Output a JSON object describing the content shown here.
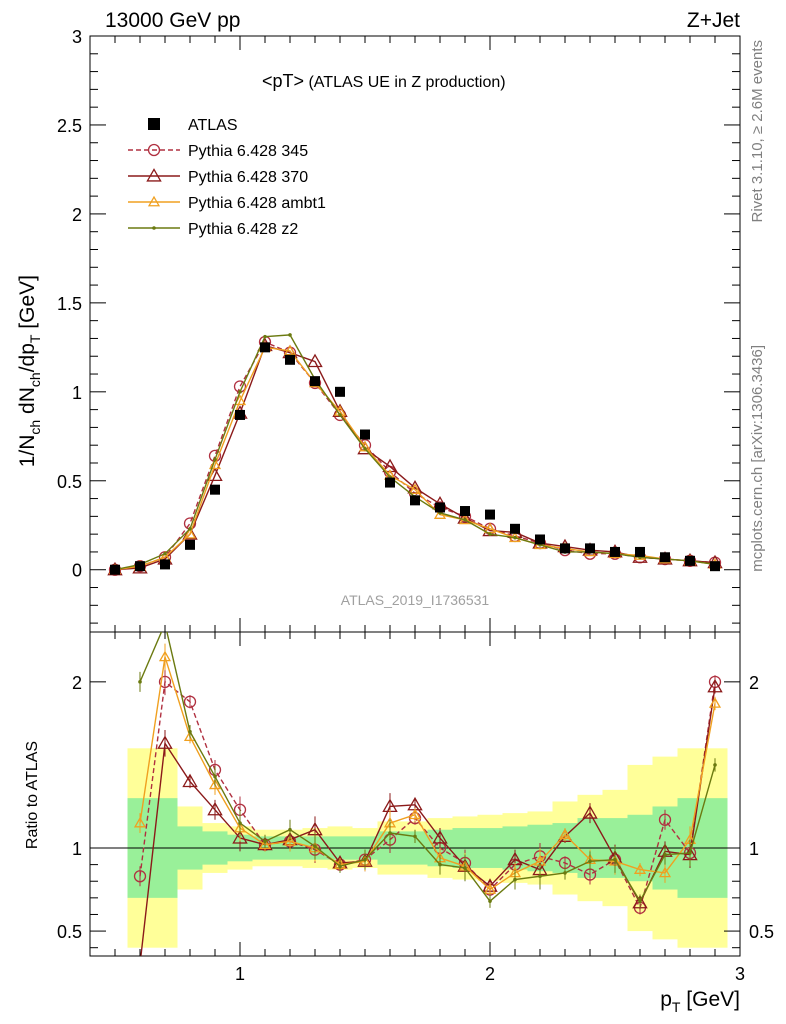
{
  "header": {
    "left_label": "13000 GeV pp",
    "right_label": "Z+Jet"
  },
  "side_labels": {
    "rivet": "Rivet 3.1.10, ≥ 2.6M events",
    "source": "mcplots.cern.ch [arXiv:1306.3436]"
  },
  "watermark": "ATLAS_2019_I1736531",
  "title": {
    "main": "<pT>",
    "suffix": " (ATLAS UE in Z production)"
  },
  "axes": {
    "ylabel_main": "1/N",
    "ylabel_sub1": "ch",
    "ylabel_mid": " dN",
    "ylabel_sub2": "ch",
    "ylabel_mid2": "/dp",
    "ylabel_sub3": "T",
    "ylabel_end": " [GeV]",
    "ylabel_ratio": "Ratio to ATLAS",
    "xlabel_main": "p",
    "xlabel_sub": "T",
    "xlabel_end": " [GeV]"
  },
  "chart_data": {
    "type": "line",
    "xlim": [
      0.4,
      3.0
    ],
    "ylim": [
      -0.35,
      3.0
    ],
    "ratio_ylim": [
      0.35,
      2.3
    ],
    "x_ticks": [
      "1",
      "2",
      "3"
    ],
    "y_ticks": [
      "0",
      "0.5",
      "1",
      "1.5",
      "2",
      "2.5",
      "3"
    ],
    "ratio_ticks": [
      "0.5",
      "1",
      "2"
    ],
    "x": [
      0.5,
      0.6,
      0.7,
      0.8,
      0.9,
      1.0,
      1.1,
      1.2,
      1.3,
      1.4,
      1.5,
      1.6,
      1.7,
      1.8,
      1.9,
      2.0,
      2.1,
      2.2,
      2.3,
      2.4,
      2.5,
      2.6,
      2.7,
      2.8,
      2.9
    ],
    "data": {
      "name": "ATLAS",
      "values": [
        0.0,
        0.02,
        0.03,
        0.14,
        0.45,
        0.87,
        1.25,
        1.18,
        1.06,
        1.0,
        0.76,
        0.49,
        0.39,
        0.35,
        0.33,
        0.31,
        0.23,
        0.17,
        0.12,
        0.12,
        0.1,
        0.1,
        0.07,
        0.05,
        0.02
      ]
    },
    "series": [
      {
        "name": "Pythia 6.428 345",
        "color": "#b03040",
        "dashed": true,
        "marker": "circle",
        "values": [
          0.0,
          0.02,
          0.07,
          0.26,
          0.64,
          1.03,
          1.28,
          1.22,
          1.05,
          0.87,
          0.7,
          0.55,
          0.43,
          0.35,
          0.3,
          0.23,
          0.19,
          0.15,
          0.11,
          0.09,
          0.09,
          0.07,
          0.06,
          0.05,
          0.04
        ],
        "ratio": [
          null,
          0.83,
          2.0,
          1.88,
          1.47,
          1.23,
          1.02,
          1.04,
          0.99,
          0.9,
          0.93,
          1.05,
          1.18,
          1.0,
          0.91,
          0.75,
          0.9,
          0.95,
          0.91,
          0.84,
          0.93,
          0.64,
          1.17,
          0.97,
          2.0
        ]
      },
      {
        "name": "Pythia 6.428 370",
        "color": "#8b1a1a",
        "dashed": false,
        "marker": "triangle",
        "values": [
          0.0,
          0.01,
          0.06,
          0.2,
          0.53,
          0.88,
          1.26,
          1.22,
          1.17,
          0.89,
          0.68,
          0.58,
          0.46,
          0.37,
          0.29,
          0.22,
          0.21,
          0.15,
          0.13,
          0.11,
          0.1,
          0.07,
          0.06,
          0.05,
          0.04
        ],
        "ratio": [
          null,
          0.3,
          1.63,
          1.4,
          1.23,
          1.06,
          1.02,
          1.05,
          1.11,
          0.91,
          0.92,
          1.25,
          1.26,
          1.06,
          0.89,
          0.77,
          0.93,
          0.87,
          1.07,
          1.21,
          0.94,
          0.67,
          0.98,
          0.96,
          1.97
        ]
      },
      {
        "name": "Pythia 6.428 ambt1",
        "color": "#f0a020",
        "dashed": false,
        "marker": "triangle-small",
        "values": [
          0.0,
          0.02,
          0.07,
          0.2,
          0.59,
          0.95,
          1.25,
          1.23,
          1.05,
          0.89,
          0.69,
          0.53,
          0.45,
          0.31,
          0.28,
          0.23,
          0.18,
          0.14,
          0.12,
          0.1,
          0.09,
          0.08,
          0.06,
          0.05,
          0.03
        ],
        "ratio": [
          null,
          1.15,
          2.15,
          1.67,
          1.38,
          1.12,
          1.02,
          1.04,
          1.0,
          0.9,
          0.92,
          1.15,
          1.2,
          0.94,
          0.89,
          0.75,
          0.85,
          0.92,
          1.08,
          0.93,
          0.92,
          0.87,
          0.85,
          1.05,
          1.87
        ]
      },
      {
        "name": "Pythia 6.428 z2",
        "color": "#6b7a10",
        "dashed": false,
        "marker": "dot",
        "values": [
          0.0,
          0.03,
          0.09,
          0.23,
          0.62,
          1.0,
          1.31,
          1.32,
          1.07,
          0.87,
          0.68,
          0.52,
          0.41,
          0.32,
          0.28,
          0.2,
          0.18,
          0.14,
          0.1,
          0.1,
          0.09,
          0.07,
          0.06,
          0.05,
          0.03
        ],
        "ratio": [
          null,
          2.0,
          2.35,
          1.7,
          1.43,
          1.15,
          1.04,
          1.11,
          1.01,
          0.89,
          0.93,
          1.09,
          1.07,
          0.9,
          0.88,
          0.68,
          0.81,
          0.83,
          0.85,
          0.92,
          0.93,
          0.68,
          0.96,
          0.97,
          1.5
        ]
      }
    ],
    "band_inner_half": [
      null,
      0.3,
      0.3,
      0.13,
      0.1,
      0.08,
      0.07,
      0.07,
      0.07,
      0.07,
      0.07,
      0.1,
      0.1,
      0.11,
      0.12,
      0.12,
      0.13,
      0.14,
      0.15,
      0.18,
      0.18,
      0.2,
      0.25,
      0.3,
      0.3
    ],
    "band_outer_half": [
      null,
      0.6,
      0.6,
      0.25,
      0.15,
      0.13,
      0.11,
      0.11,
      0.12,
      0.13,
      0.12,
      0.16,
      0.16,
      0.18,
      0.19,
      0.2,
      0.21,
      0.22,
      0.28,
      0.32,
      0.35,
      0.5,
      0.55,
      0.6,
      0.6
    ],
    "legend_position": "top-left"
  },
  "colors": {
    "band_inner": "#99f099",
    "band_outer": "#ffff99",
    "data": "#000000"
  }
}
